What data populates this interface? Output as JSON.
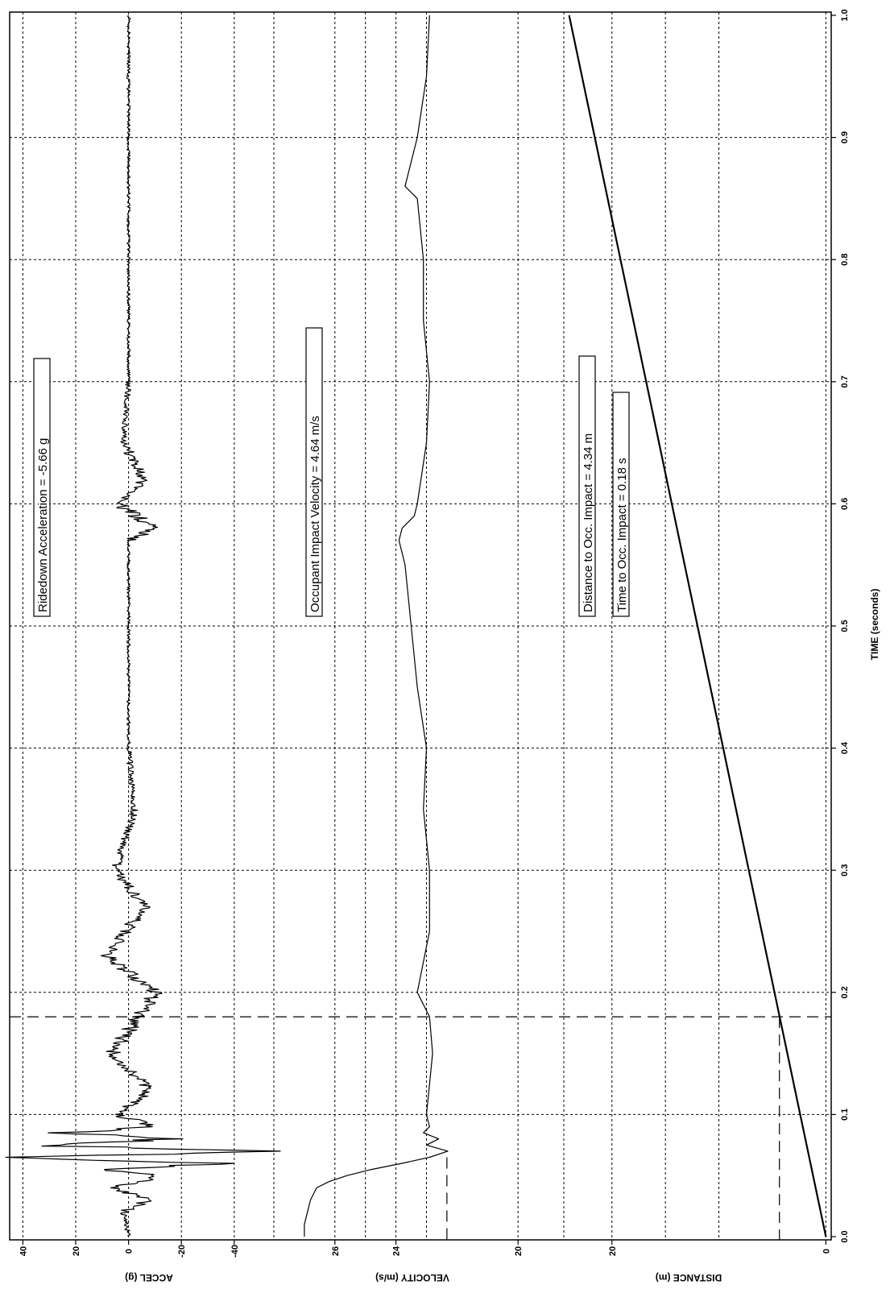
{
  "chart_data": {
    "type": "line",
    "orientation": "rotated 90 degrees clockwise (time axis runs down the right side)",
    "x_axis": {
      "label": "TIME (seconds)",
      "range": [
        0.0,
        1.0
      ],
      "ticks": [
        "0.0",
        "0.1",
        "0.2",
        "0.3",
        "0.4",
        "0.5",
        "0.6",
        "0.7",
        "0.8",
        "0.9",
        "1.0"
      ]
    },
    "grid": true,
    "panels": [
      {
        "id": "accel",
        "ylabel": "ACCEL (g)",
        "ylim": [
          -55,
          45
        ],
        "ticks": [
          "40",
          "20",
          "0",
          "-20",
          "-40"
        ],
        "tick_values": [
          40,
          20,
          0,
          -20,
          -40
        ],
        "series": [
          {
            "x": [
              0.0,
              0.02,
              0.03,
              0.04,
              0.05,
              0.055,
              0.06,
              0.065,
              0.07,
              0.075,
              0.08,
              0.085,
              0.09,
              0.1,
              0.12,
              0.15,
              0.2,
              0.23,
              0.27,
              0.3,
              0.35,
              0.4,
              0.5,
              0.57,
              0.58,
              0.6,
              0.62,
              0.65,
              0.7,
              0.8,
              0.9,
              1.0
            ],
            "y": [
              0,
              2,
              -8,
              6,
              -12,
              10,
              -35,
              40,
              -50,
              35,
              -20,
              25,
              -10,
              5,
              -8,
              6,
              -10,
              8,
              -6,
              5,
              -2,
              0,
              0,
              0,
              -10,
              4,
              -6,
              2,
              0,
              0,
              0,
              0
            ]
          }
        ],
        "annotation": "Ridedown Acceleration = -5.66 g"
      },
      {
        "id": "velocity",
        "ylabel": "VELOCITY (m/s)",
        "ylim": [
          18.5,
          28.0
        ],
        "ticks": [
          "26",
          "24",
          "20"
        ],
        "tick_values": [
          26,
          24,
          20
        ],
        "series": [
          {
            "x": [
              0.0,
              0.01,
              0.02,
              0.03,
              0.04,
              0.045,
              0.05,
              0.055,
              0.06,
              0.065,
              0.07,
              0.075,
              0.08,
              0.085,
              0.09,
              0.1,
              0.15,
              0.18,
              0.2,
              0.25,
              0.3,
              0.35,
              0.4,
              0.45,
              0.5,
              0.55,
              0.57,
              0.58,
              0.59,
              0.6,
              0.65,
              0.7,
              0.75,
              0.8,
              0.85,
              0.86,
              0.9,
              0.95,
              1.0
            ],
            "y": [
              27.0,
              27.0,
              26.9,
              26.8,
              26.6,
              26.2,
              25.6,
              24.8,
              23.8,
              22.9,
              22.3,
              23.0,
              22.6,
              23.1,
              22.9,
              23.0,
              22.8,
              22.9,
              23.3,
              22.9,
              22.9,
              23.1,
              23.0,
              23.3,
              23.5,
              23.7,
              23.9,
              23.8,
              23.4,
              23.3,
              23.0,
              22.9,
              23.1,
              23.1,
              23.3,
              23.7,
              23.3,
              23.0,
              22.9
            ]
          }
        ],
        "annotation": "Occupant Impact Velocity = 4.64 m/s"
      },
      {
        "id": "distance",
        "ylabel": "DISTANCE (m)",
        "ylim": [
          -0.5,
          24.5
        ],
        "ticks": [
          "20",
          "0"
        ],
        "tick_values": [
          20,
          0
        ],
        "series": [
          {
            "x": [
              0.0,
              0.1,
              0.2,
              0.3,
              0.4,
              0.5,
              0.6,
              0.7,
              0.8,
              0.9,
              1.0
            ],
            "y": [
              0.0,
              2.4,
              4.8,
              7.2,
              9.6,
              12.0,
              14.4,
              16.8,
              19.2,
              21.6,
              24.0
            ]
          }
        ],
        "annotations": [
          "Distance to Occ. Impact = 4.34 m",
          "Time to Occ. Impact = 0.18 s"
        ]
      }
    ],
    "markers": {
      "impact_time": 0.18,
      "velocity_reference_t_start": 0.065,
      "velocity_reference_value": 22.33,
      "distance_reference_value": 4.34
    }
  }
}
